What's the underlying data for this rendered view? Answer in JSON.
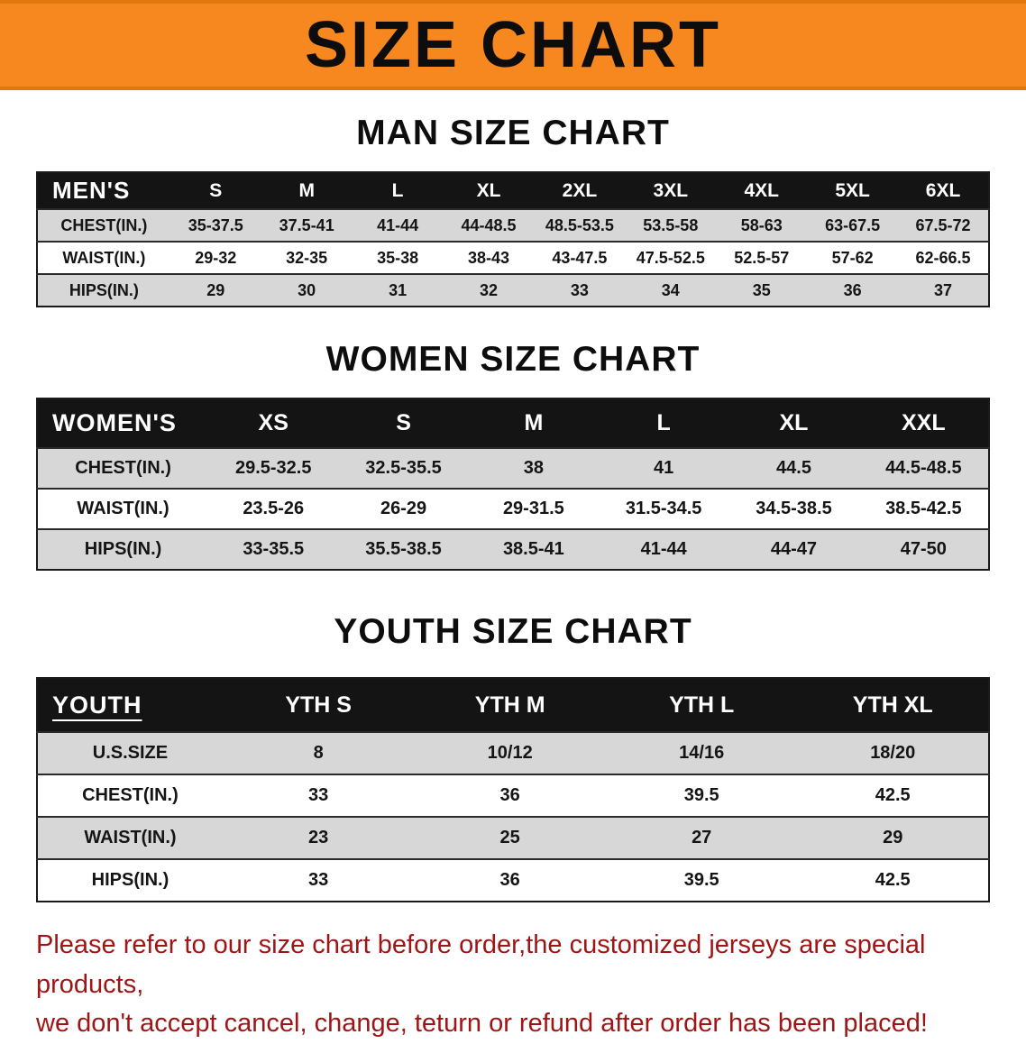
{
  "banner": {
    "title": "SIZE CHART"
  },
  "colors": {
    "banner_orange": "#f6881f",
    "table_header_black": "#141414",
    "row_gray": "#d7d7d7",
    "footer_red": "#9f1515"
  },
  "sections": [
    {
      "heading": "MAN SIZE CHART",
      "table": {
        "header": [
          "MEN'S",
          "S",
          "M",
          "L",
          "XL",
          "2XL",
          "3XL",
          "4XL",
          "5XL",
          "6XL"
        ],
        "rows": [
          {
            "label": "CHEST(IN.)",
            "values": [
              "35-37.5",
              "37.5-41",
              "41-44",
              "44-48.5",
              "48.5-53.5",
              "53.5-58",
              "58-63",
              "63-67.5",
              "67.5-72"
            ]
          },
          {
            "label": "WAIST(IN.)",
            "values": [
              "29-32",
              "32-35",
              "35-38",
              "38-43",
              "43-47.5",
              "47.5-52.5",
              "52.5-57",
              "57-62",
              "62-66.5"
            ]
          },
          {
            "label": "HIPS(IN.)",
            "values": [
              "29",
              "30",
              "31",
              "32",
              "33",
              "34",
              "35",
              "36",
              "37"
            ]
          }
        ]
      }
    },
    {
      "heading": "WOMEN SIZE CHART",
      "table": {
        "header": [
          "WOMEN'S",
          "XS",
          "S",
          "M",
          "L",
          "XL",
          "XXL"
        ],
        "rows": [
          {
            "label": "CHEST(IN.)",
            "values": [
              "29.5-32.5",
              "32.5-35.5",
              "38",
              "41",
              "44.5",
              "44.5-48.5"
            ]
          },
          {
            "label": "WAIST(IN.)",
            "values": [
              "23.5-26",
              "26-29",
              "29-31.5",
              "31.5-34.5",
              "34.5-38.5",
              "38.5-42.5"
            ]
          },
          {
            "label": "HIPS(IN.)",
            "values": [
              "33-35.5",
              "35.5-38.5",
              "38.5-41",
              "41-44",
              "44-47",
              "47-50"
            ]
          }
        ]
      }
    },
    {
      "heading": "YOUTH SIZE CHART",
      "table": {
        "header": [
          "YOUTH",
          "YTH S",
          "YTH M",
          "YTH L",
          "YTH XL"
        ],
        "rows": [
          {
            "label": "U.S.SIZE",
            "values": [
              "8",
              "10/12",
              "14/16",
              "18/20"
            ]
          },
          {
            "label": "CHEST(IN.)",
            "values": [
              "33",
              "36",
              "39.5",
              "42.5"
            ]
          },
          {
            "label": "WAIST(IN.)",
            "values": [
              "23",
              "25",
              "27",
              "29"
            ]
          },
          {
            "label": "HIPS(IN.)",
            "values": [
              "33",
              "36",
              "39.5",
              "42.5"
            ]
          }
        ]
      }
    }
  ],
  "footer": {
    "line1": "Please refer to our size chart before order,the customized jerseys are special products,",
    "line2": "we don't accept cancel, change, teturn or refund after order has been placed!"
  }
}
